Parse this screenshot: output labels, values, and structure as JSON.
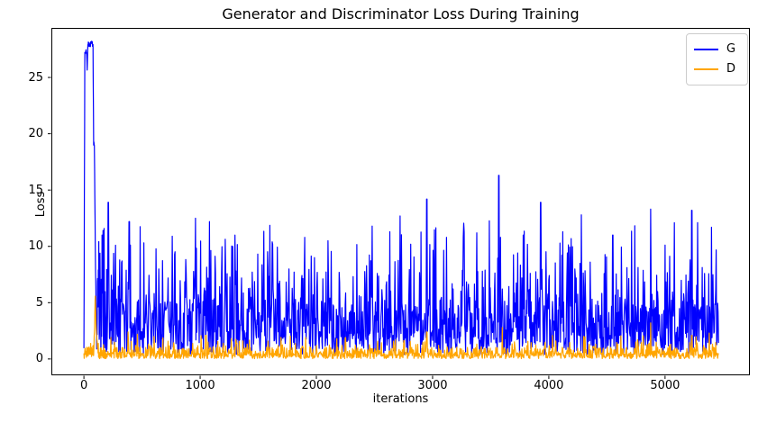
{
  "chart_data": {
    "type": "line",
    "title": "Generator and Discriminator Loss During Training",
    "xlabel": "iterations",
    "ylabel": "Loss",
    "xlim": [
      -280,
      5730
    ],
    "ylim": [
      -1.45,
      29.4
    ],
    "xticks": [
      0,
      1000,
      2000,
      3000,
      4000,
      5000
    ],
    "yticks": [
      0,
      5,
      10,
      15,
      20,
      25
    ],
    "x_data_max": 5460,
    "grid": false,
    "background_color": "#ffffff",
    "spine_color": "#000000",
    "legend": {
      "position": "upper right",
      "entries": [
        {
          "label": "G",
          "color": "#0000ff"
        },
        {
          "label": "D",
          "color": "#ffa500"
        }
      ]
    },
    "noise_seed": 7,
    "series": [
      {
        "name": "G",
        "color": "#0000ff",
        "linewidth": 1.2,
        "description": "Generator loss: initial spike to ~28 near iteration 0-80, then dense noise band ~0.5-6 with frequent spikes 7-12 and occasional larger peaks",
        "initial_spike_envelope": [
          [
            0,
            1.2
          ],
          [
            8,
            27.2
          ],
          [
            22,
            27.4
          ],
          [
            28,
            25.8
          ],
          [
            34,
            27.9
          ],
          [
            78,
            28.0
          ],
          [
            84,
            19.2
          ],
          [
            90,
            19.0
          ],
          [
            94,
            14.3
          ],
          [
            100,
            8.0
          ],
          [
            108,
            2.5
          ]
        ],
        "baseline_bands": [
          [
            0.5,
            0.4,
            2.6
          ],
          [
            0.8,
            3.0,
            2.5
          ],
          [
            0.94,
            5.5,
            2.5
          ],
          [
            0.988,
            8.0,
            2.5
          ],
          [
            1.0,
            10.5,
            1.8
          ]
        ],
        "major_peaks": [
          [
            210,
            13.9
          ],
          [
            390,
            12.2
          ],
          [
            760,
            10.9
          ],
          [
            960,
            12.5
          ],
          [
            1080,
            12.2
          ],
          [
            1300,
            11.0
          ],
          [
            1620,
            10.4
          ],
          [
            1900,
            10.8
          ],
          [
            2100,
            10.5
          ],
          [
            2480,
            11.8
          ],
          [
            2720,
            12.7
          ],
          [
            2950,
            14.2
          ],
          [
            3120,
            10.8
          ],
          [
            3380,
            11.2
          ],
          [
            3570,
            16.3
          ],
          [
            3780,
            11.0
          ],
          [
            3930,
            13.9
          ],
          [
            4120,
            11.3
          ],
          [
            4280,
            12.8
          ],
          [
            4550,
            11.0
          ],
          [
            4875,
            13.3
          ],
          [
            5080,
            12.1
          ],
          [
            5230,
            13.2
          ],
          [
            5400,
            11.7
          ]
        ]
      },
      {
        "name": "D",
        "color": "#ffa500",
        "linewidth": 1.2,
        "description": "Discriminator loss: mostly 0-1.5 with initial spike to ~6.1 near iteration 100 and occasional spikes to 2-3.2",
        "initial_spike_envelope": [
          [
            85,
            0.9
          ],
          [
            92,
            3.0
          ],
          [
            97,
            6.1
          ],
          [
            103,
            3.4
          ],
          [
            112,
            1.6
          ],
          [
            120,
            0.9
          ]
        ],
        "baseline_bands": [
          [
            0.62,
            0.03,
            0.5
          ],
          [
            0.9,
            0.5,
            0.55
          ],
          [
            0.975,
            1.0,
            0.6
          ],
          [
            1.0,
            1.55,
            0.6
          ]
        ],
        "major_peaks": [
          [
            380,
            2.4
          ],
          [
            460,
            2.2
          ],
          [
            1050,
            2.1
          ],
          [
            2250,
            1.9
          ],
          [
            2950,
            2.4
          ],
          [
            3600,
            2.8
          ],
          [
            4300,
            2.0
          ],
          [
            4875,
            3.2
          ],
          [
            5230,
            2.1
          ],
          [
            5380,
            2.3
          ]
        ]
      }
    ]
  }
}
